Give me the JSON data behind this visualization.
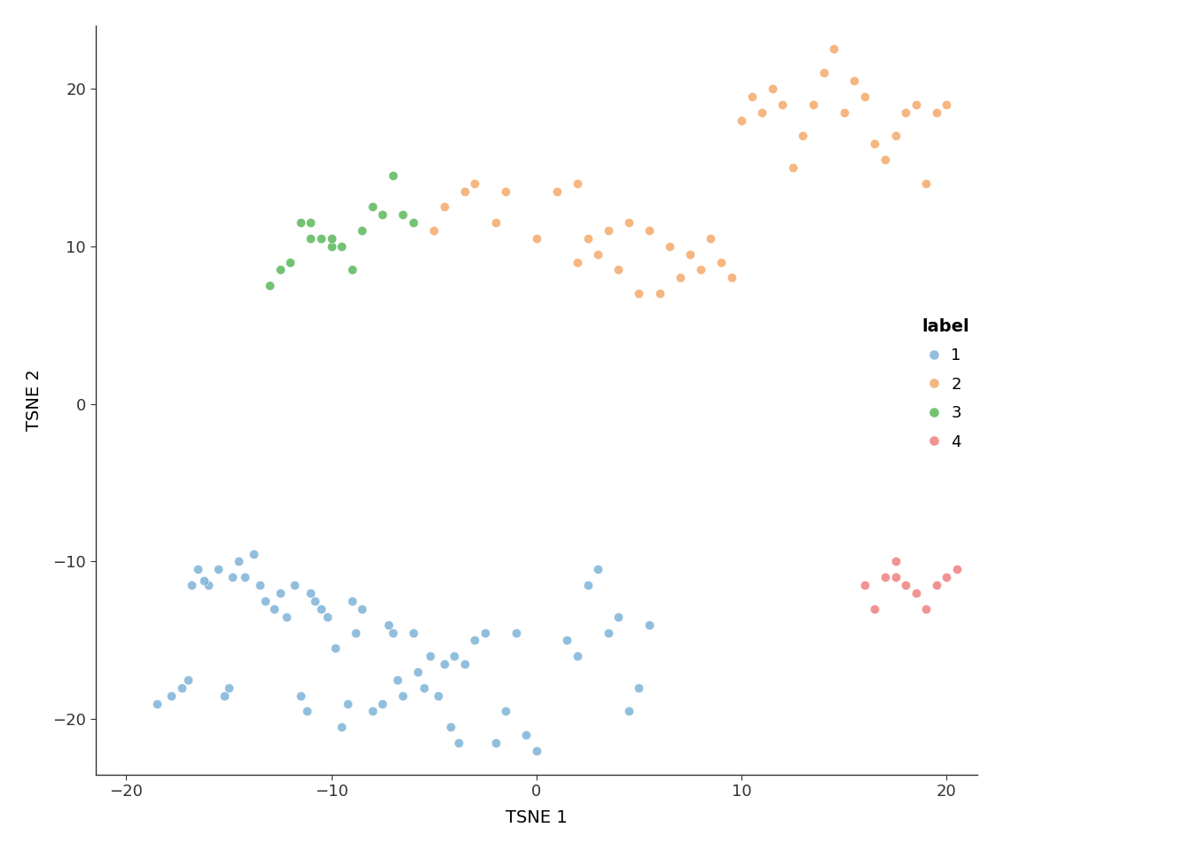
{
  "cluster1_x": [
    -18.5,
    -17.8,
    -17.3,
    -16.8,
    -16.5,
    -16.0,
    -15.5,
    -15.2,
    -14.8,
    -14.5,
    -14.2,
    -13.8,
    -13.5,
    -13.2,
    -12.8,
    -12.5,
    -12.2,
    -11.8,
    -11.5,
    -11.2,
    -10.8,
    -10.5,
    -10.2,
    -9.8,
    -9.5,
    -9.2,
    -8.8,
    -8.5,
    -8.0,
    -7.5,
    -7.2,
    -6.8,
    -6.5,
    -6.0,
    -5.5,
    -5.2,
    -4.8,
    -4.5,
    -4.2,
    -3.8,
    -3.5,
    -3.0,
    -2.5,
    -2.0,
    -1.5,
    -1.0,
    -0.5,
    0.0,
    1.5,
    2.0,
    2.5,
    3.0,
    3.5,
    4.0,
    4.5,
    5.0,
    5.5,
    -17.0,
    -16.2,
    -15.0,
    -11.0,
    -9.0,
    -7.0,
    -5.8,
    -4.0
  ],
  "cluster1_y": [
    -19.0,
    -18.5,
    -18.0,
    -11.5,
    -10.5,
    -11.5,
    -10.5,
    -18.5,
    -11.0,
    -10.0,
    -11.0,
    -9.5,
    -11.5,
    -12.5,
    -13.0,
    -12.0,
    -13.5,
    -11.5,
    -18.5,
    -19.5,
    -12.5,
    -13.0,
    -13.5,
    -15.5,
    -20.5,
    -19.0,
    -14.5,
    -13.0,
    -19.5,
    -19.0,
    -14.0,
    -17.5,
    -18.5,
    -14.5,
    -18.0,
    -16.0,
    -18.5,
    -16.5,
    -20.5,
    -21.5,
    -16.5,
    -15.0,
    -14.5,
    -21.5,
    -19.5,
    -14.5,
    -21.0,
    -22.0,
    -15.0,
    -16.0,
    -11.5,
    -10.5,
    -14.5,
    -13.5,
    -19.5,
    -18.0,
    -14.0,
    -17.5,
    -11.2,
    -18.0,
    -12.0,
    -12.5,
    -14.5,
    -17.0,
    -16.0
  ],
  "cluster2_x": [
    -5.0,
    -4.5,
    -3.5,
    -3.0,
    -2.0,
    -1.5,
    0.0,
    1.0,
    2.0,
    2.5,
    3.5,
    4.5,
    5.5,
    6.5,
    7.5,
    8.5,
    9.5,
    10.0,
    10.5,
    11.0,
    11.5,
    12.0,
    12.5,
    13.0,
    13.5,
    14.0,
    14.5,
    15.0,
    15.5,
    16.0,
    16.5,
    17.0,
    17.5,
    18.0,
    18.5,
    19.0,
    19.5,
    20.0,
    7.0,
    8.0,
    9.0,
    6.0,
    5.0,
    4.0,
    3.0,
    2.0
  ],
  "cluster2_y": [
    11.0,
    12.5,
    13.5,
    14.0,
    11.5,
    13.5,
    10.5,
    13.5,
    14.0,
    10.5,
    11.0,
    11.5,
    11.0,
    10.0,
    9.5,
    10.5,
    8.0,
    18.0,
    19.5,
    18.5,
    20.0,
    19.0,
    15.0,
    17.0,
    19.0,
    21.0,
    22.5,
    18.5,
    20.5,
    19.5,
    16.5,
    15.5,
    17.0,
    18.5,
    19.0,
    14.0,
    18.5,
    19.0,
    8.0,
    8.5,
    9.0,
    7.0,
    7.0,
    8.5,
    9.5,
    9.0
  ],
  "cluster3_x": [
    -13.0,
    -12.5,
    -12.0,
    -11.5,
    -11.0,
    -11.0,
    -10.5,
    -10.0,
    -10.0,
    -9.5,
    -9.0,
    -8.5,
    -8.0,
    -7.5,
    -7.0,
    -6.5,
    -6.0
  ],
  "cluster3_y": [
    7.5,
    8.5,
    9.0,
    11.5,
    11.5,
    10.5,
    10.5,
    10.0,
    10.5,
    10.0,
    8.5,
    11.0,
    12.5,
    12.0,
    14.5,
    12.0,
    11.5
  ],
  "cluster4_x": [
    16.0,
    16.5,
    17.0,
    17.5,
    17.5,
    18.0,
    18.5,
    19.0,
    19.5,
    20.0,
    20.5
  ],
  "cluster4_y": [
    -11.5,
    -13.0,
    -11.0,
    -10.0,
    -11.0,
    -11.5,
    -12.0,
    -13.0,
    -11.5,
    -11.0,
    -10.5
  ],
  "color1": "#7EB3D8",
  "color2": "#F4A96A",
  "color3": "#5CB85C",
  "color4": "#F08080",
  "xlabel": "TSNE 1",
  "ylabel": "TSNE 2",
  "legend_title": "label",
  "xlim": [
    -21.5,
    21.5
  ],
  "ylim": [
    -23.5,
    24.0
  ],
  "xticks": [
    -20,
    -10,
    0,
    10,
    20
  ],
  "yticks": [
    -20,
    -10,
    0,
    10,
    20
  ],
  "marker_size": 55,
  "alpha": 0.85,
  "edge_color": "white",
  "edge_width": 0.4,
  "bg_color": "#ffffff",
  "tick_color": "#333333",
  "spine_color": "#333333",
  "font_size_ticks": 13,
  "font_size_labels": 14,
  "font_size_legend_title": 14,
  "font_size_legend": 13
}
